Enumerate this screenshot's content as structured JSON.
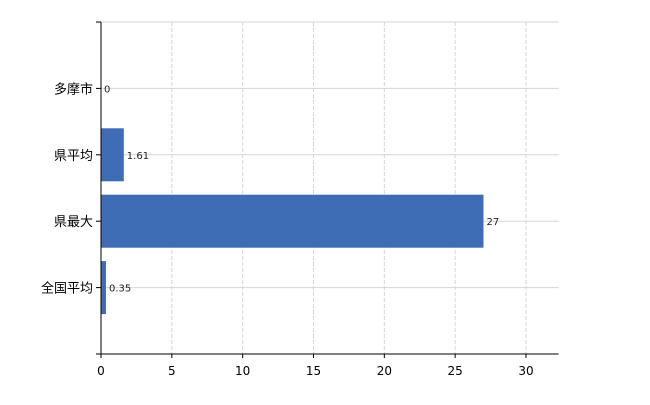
{
  "chart_data": {
    "type": "bar",
    "orientation": "horizontal",
    "categories": [
      "多摩市",
      "県平均",
      "県最大",
      "全国平均"
    ],
    "values": [
      0,
      1.61,
      27,
      0.35
    ],
    "data_labels": [
      "0",
      "1.61",
      "27",
      "0.35"
    ],
    "xlim": [
      0,
      32.3
    ],
    "xticks": [
      0,
      5,
      10,
      15,
      20,
      25,
      30
    ],
    "grid": true,
    "bar_color": "#3e6db5",
    "title": "",
    "xlabel": "",
    "ylabel": ""
  }
}
